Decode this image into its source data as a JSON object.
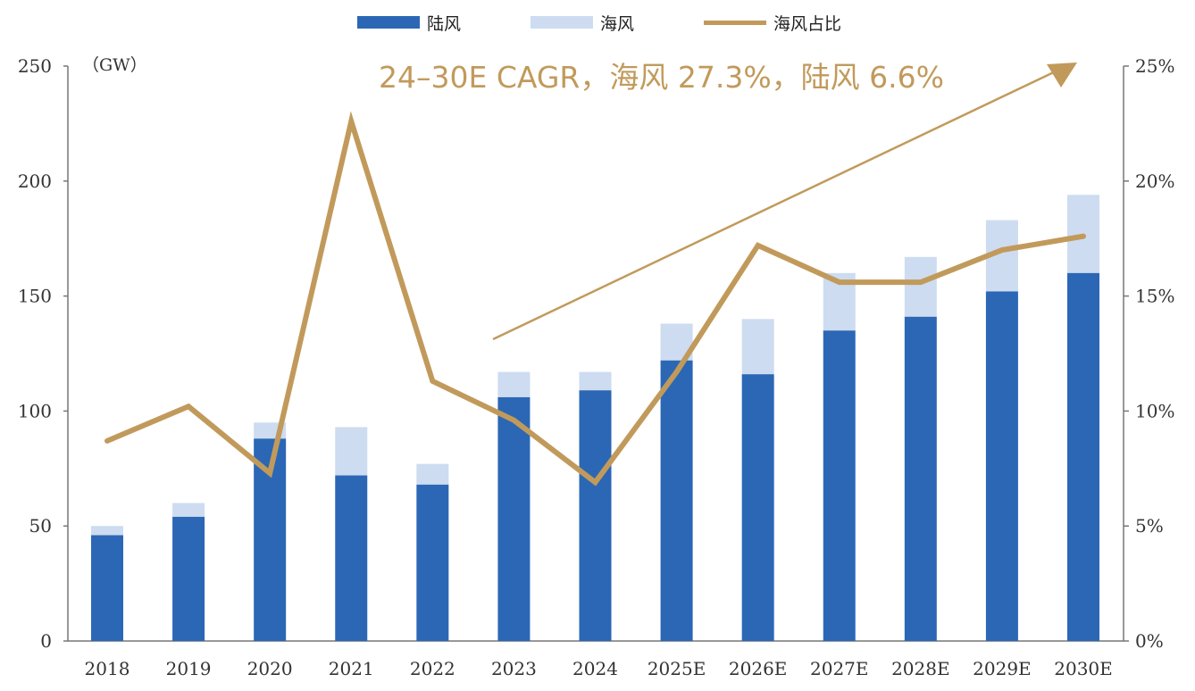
{
  "chart_data": {
    "type": "bar",
    "stacked": true,
    "categories": [
      "2018",
      "2019",
      "2020",
      "2021",
      "2022",
      "2023",
      "2024",
      "2025E",
      "2026E",
      "2027E",
      "2028E",
      "2029E",
      "2030E"
    ],
    "series": [
      {
        "name": "陆风",
        "axis": "left",
        "type": "bar",
        "values": [
          46,
          54,
          88,
          72,
          68,
          106,
          109,
          122,
          116,
          135,
          141,
          152,
          160
        ]
      },
      {
        "name": "海风",
        "axis": "left",
        "type": "bar",
        "values": [
          4,
          6,
          7,
          21,
          9,
          11,
          8,
          16,
          24,
          25,
          26,
          31,
          34
        ]
      },
      {
        "name": "海风占比",
        "axis": "right",
        "type": "line",
        "values": [
          8.7,
          10.2,
          7.3,
          22.6,
          11.3,
          9.6,
          6.9,
          11.7,
          17.2,
          15.6,
          15.6,
          17.0,
          17.6
        ]
      }
    ],
    "colors": {
      "onshore": "#2b67b5",
      "offshore": "#cddcf0",
      "share_line": "#c19a5b",
      "annotation": "#c19a5b"
    },
    "left_axis": {
      "unit": "（GW）",
      "ylim": [
        0,
        250
      ],
      "ticks": [
        "0",
        "50",
        "100",
        "150",
        "200",
        "250"
      ]
    },
    "right_axis": {
      "ylim": [
        0,
        25
      ],
      "ticks": [
        "0%",
        "5%",
        "10%",
        "15%",
        "20%",
        "25%"
      ]
    },
    "annotation": "24–30E CAGR，海风 27.3%，陆风 6.6%",
    "legend_position": "top-center",
    "grid": false
  }
}
